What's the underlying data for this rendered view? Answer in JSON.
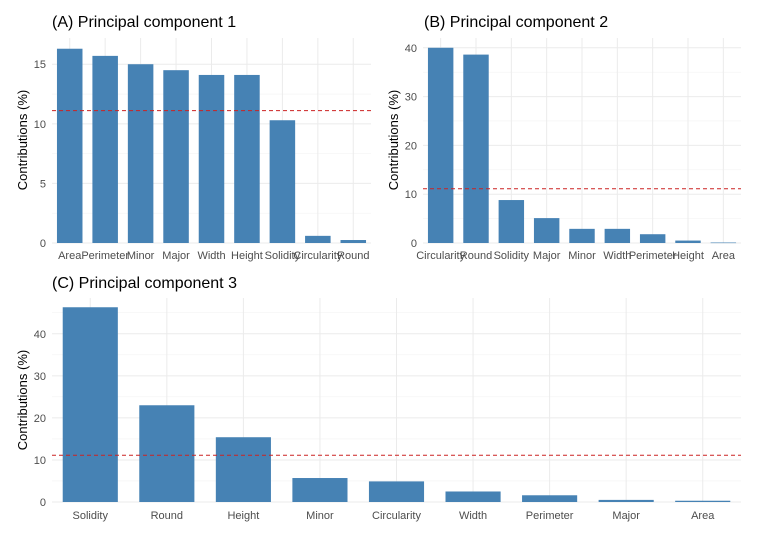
{
  "chart_data": [
    {
      "type": "bar",
      "title": "(A) Principal component 1",
      "ylabel": "Contributions (%)",
      "xlabel": "",
      "categories": [
        "Area",
        "Perimeter",
        "Minor",
        "Major",
        "Width",
        "Height",
        "Solidity",
        "Circularity",
        "Round"
      ],
      "values": [
        16.3,
        15.7,
        15.0,
        14.5,
        14.1,
        14.1,
        10.3,
        0.6,
        0.25
      ],
      "ylim": [
        0,
        17.2
      ],
      "yticks": [
        0,
        5,
        10,
        15
      ],
      "reference_line": 11.11,
      "grid": true
    },
    {
      "type": "bar",
      "title": "(B) Principal component 2",
      "ylabel": "Contributions (%)",
      "xlabel": "",
      "categories": [
        "Circularity",
        "Round",
        "Solidity",
        "Major",
        "Minor",
        "Width",
        "Perimeter",
        "Height",
        "Area"
      ],
      "values": [
        40.0,
        38.6,
        8.8,
        5.1,
        2.9,
        2.9,
        1.8,
        0.5,
        0.1
      ],
      "ylim": [
        0,
        42
      ],
      "yticks": [
        0,
        10,
        20,
        30,
        40
      ],
      "reference_line": 11.11,
      "grid": true
    },
    {
      "type": "bar",
      "title": "(C) Principal component 3",
      "ylabel": "Contributions (%)",
      "xlabel": "",
      "categories": [
        "Solidity",
        "Round",
        "Height",
        "Minor",
        "Circularity",
        "Width",
        "Perimeter",
        "Major",
        "Area"
      ],
      "values": [
        46.3,
        23.0,
        15.4,
        5.7,
        4.9,
        2.5,
        1.6,
        0.5,
        0.3
      ],
      "ylim": [
        0,
        48.5
      ],
      "yticks": [
        0,
        10,
        20,
        30,
        40
      ],
      "reference_line": 11.11,
      "grid": true
    }
  ],
  "colors": {
    "bar": "#4682b4",
    "reference_line": "#cc2222",
    "grid": "#ebebeb",
    "tick_text": "#4d4d4d"
  }
}
